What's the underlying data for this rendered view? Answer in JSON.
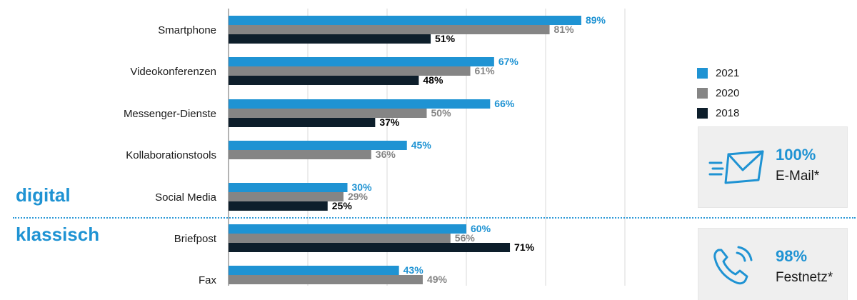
{
  "chart_data": {
    "type": "bar",
    "orientation": "horizontal",
    "categories": [
      "Smartphone",
      "Videokonferenzen",
      "Messenger-Dienste",
      "Kollaborationstools",
      "Social Media",
      "Briefpost",
      "Fax"
    ],
    "series": [
      {
        "name": "2021",
        "color": "#1f93d3",
        "values": [
          89,
          67,
          66,
          45,
          30,
          60,
          43
        ]
      },
      {
        "name": "2020",
        "color": "#858585",
        "values": [
          81,
          61,
          50,
          36,
          29,
          56,
          49
        ]
      },
      {
        "name": "2018",
        "color": "#0d1e2b",
        "values": [
          51,
          48,
          37,
          null,
          25,
          71,
          null
        ]
      }
    ],
    "value_labels": [
      [
        "89%",
        "67%",
        "66%",
        "45%",
        "30%",
        "60%",
        "43%"
      ],
      [
        "81%",
        "61%",
        "50%",
        "36%",
        "29%",
        "56%",
        "49%"
      ],
      [
        "51%",
        "48%",
        "37%",
        "",
        "25%",
        "71%",
        ""
      ]
    ],
    "xlim": [
      0,
      100
    ],
    "grid": true,
    "legend_position": "right"
  },
  "sections": {
    "digital": "digital",
    "klassisch": "klassisch"
  },
  "legend": [
    {
      "label": "2021",
      "color": "#1f93d3"
    },
    {
      "label": "2020",
      "color": "#858585"
    },
    {
      "label": "2018",
      "color": "#0d1e2b"
    }
  ],
  "kpis": {
    "email": {
      "value": "100%",
      "label": "E-Mail*",
      "icon": "envelope-icon"
    },
    "festnetz": {
      "value": "98%",
      "label": "Festnetz*",
      "icon": "phone-icon"
    }
  }
}
